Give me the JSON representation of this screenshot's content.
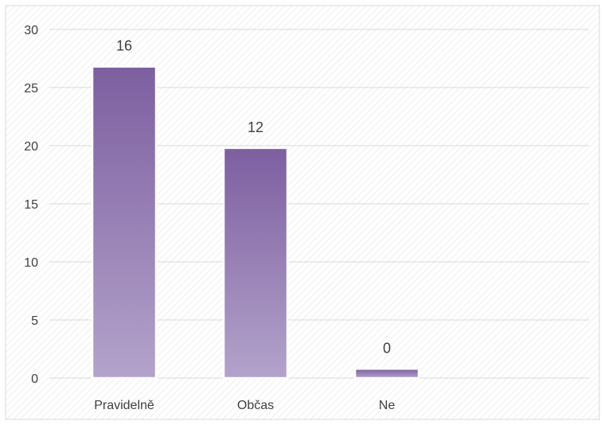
{
  "chart_data": {
    "type": "bar",
    "categories": [
      "Pravidelně",
      "Občas",
      "Ne"
    ],
    "values": [
      26.8,
      19.8,
      0.8
    ],
    "data_labels": [
      "16",
      "12",
      "0"
    ],
    "yticks": [
      0,
      5,
      10,
      15,
      20,
      25,
      30
    ],
    "ylim": [
      0,
      30
    ],
    "grid": true,
    "legend": "none",
    "title": "",
    "xlabel": "",
    "ylabel": "",
    "colors": {
      "bar_top": "#7d5fa0",
      "bar_bottom": "#b3a3cb",
      "bar_border": "#ffffff",
      "grid": "#d9d9d9",
      "text": "#404040",
      "hatch": "#e6e6e6"
    }
  }
}
